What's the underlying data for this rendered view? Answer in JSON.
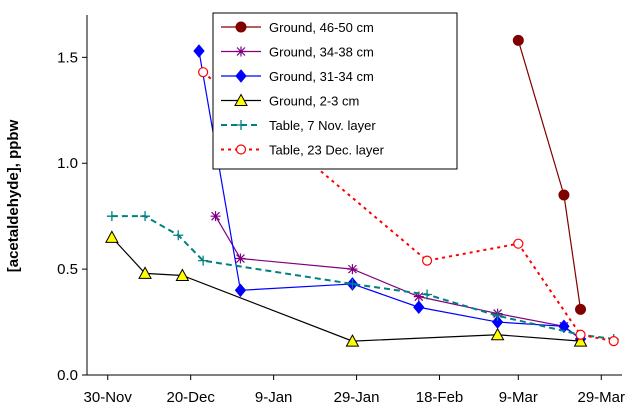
{
  "chart_data": {
    "type": "line",
    "title": "",
    "xlabel": "",
    "ylabel": "[acetaldehyde],  ppbw",
    "xlim": [
      "2004-11-25",
      "2005-04-03"
    ],
    "ylim": [
      0,
      1.7
    ],
    "x_ticks": [
      {
        "date": "2004-11-30",
        "label": "30-Nov"
      },
      {
        "date": "2004-12-20",
        "label": "20-Dec"
      },
      {
        "date": "2005-01-09",
        "label": "9-Jan"
      },
      {
        "date": "2005-01-29",
        "label": "29-Jan"
      },
      {
        "date": "2005-02-18",
        "label": "18-Feb"
      },
      {
        "date": "2005-03-09",
        "label": "9-Mar"
      },
      {
        "date": "2005-03-29",
        "label": "29-Mar"
      }
    ],
    "y_ticks": [
      {
        "value": 0,
        "label": "0.0"
      },
      {
        "value": 0.5,
        "label": "0.5"
      },
      {
        "value": 1.0,
        "label": "1.0"
      },
      {
        "value": 1.5,
        "label": "1.5"
      }
    ],
    "legend_position": "top-right",
    "series": [
      {
        "name": "Ground, 46-50 cm",
        "color": "#800000",
        "marker": "filled-circle",
        "line_style": "solid",
        "points": [
          [
            "2005-03-09",
            1.58
          ],
          [
            "2005-03-20",
            0.85
          ],
          [
            "2005-03-24",
            0.31
          ]
        ]
      },
      {
        "name": "Ground, 34-38 cm",
        "color": "#800080",
        "marker": "star",
        "line_style": "solid",
        "points": [
          [
            "2004-12-26",
            0.75
          ],
          [
            "2005-01-01",
            0.55
          ],
          [
            "2005-01-28",
            0.5
          ],
          [
            "2005-02-13",
            0.37
          ],
          [
            "2005-03-04",
            0.29
          ],
          [
            "2005-03-20",
            0.23
          ],
          [
            "2005-03-24",
            0.17
          ]
        ]
      },
      {
        "name": "Ground, 31-34 cm",
        "color": "#0000FF",
        "marker": "filled-diamond",
        "line_style": "solid",
        "points": [
          [
            "2004-12-22",
            1.53
          ],
          [
            "2005-01-01",
            0.4
          ],
          [
            "2005-01-28",
            0.43
          ],
          [
            "2005-02-13",
            0.32
          ],
          [
            "2005-03-04",
            0.25
          ],
          [
            "2005-03-20",
            0.23
          ],
          [
            "2005-03-24",
            0.17
          ]
        ]
      },
      {
        "name": "Ground, 2-3 cm",
        "color": "#000000",
        "marker_fill": "#FFFF00",
        "marker": "triangle",
        "line_style": "solid",
        "points": [
          [
            "2004-12-01",
            0.65
          ],
          [
            "2004-12-09",
            0.48
          ],
          [
            "2004-12-18",
            0.47
          ],
          [
            "2005-01-28",
            0.16
          ],
          [
            "2005-03-04",
            0.19
          ],
          [
            "2005-03-24",
            0.16
          ]
        ]
      },
      {
        "name": "Table, 7 Nov. layer",
        "color": "#008080",
        "marker": "plus",
        "line_style": "dashed",
        "points": [
          [
            "2004-12-01",
            0.75
          ],
          [
            "2004-12-09",
            0.75
          ],
          [
            "2004-12-17",
            0.66
          ],
          [
            "2004-12-23",
            0.54
          ],
          [
            "2005-01-28",
            0.43
          ],
          [
            "2005-02-15",
            0.38
          ],
          [
            "2005-03-04",
            0.28
          ],
          [
            "2005-03-24",
            0.19
          ],
          [
            "2005-04-01",
            0.17
          ]
        ]
      },
      {
        "name": "Table, 23 Dec. layer",
        "color": "#FF0000",
        "marker": "open-circle",
        "line_style": "dotted",
        "points": [
          [
            "2004-12-23",
            1.43
          ],
          [
            "2005-02-15",
            0.54
          ],
          [
            "2005-03-09",
            0.62
          ],
          [
            "2005-03-24",
            0.19
          ],
          [
            "2005-04-01",
            0.16
          ]
        ]
      }
    ]
  }
}
